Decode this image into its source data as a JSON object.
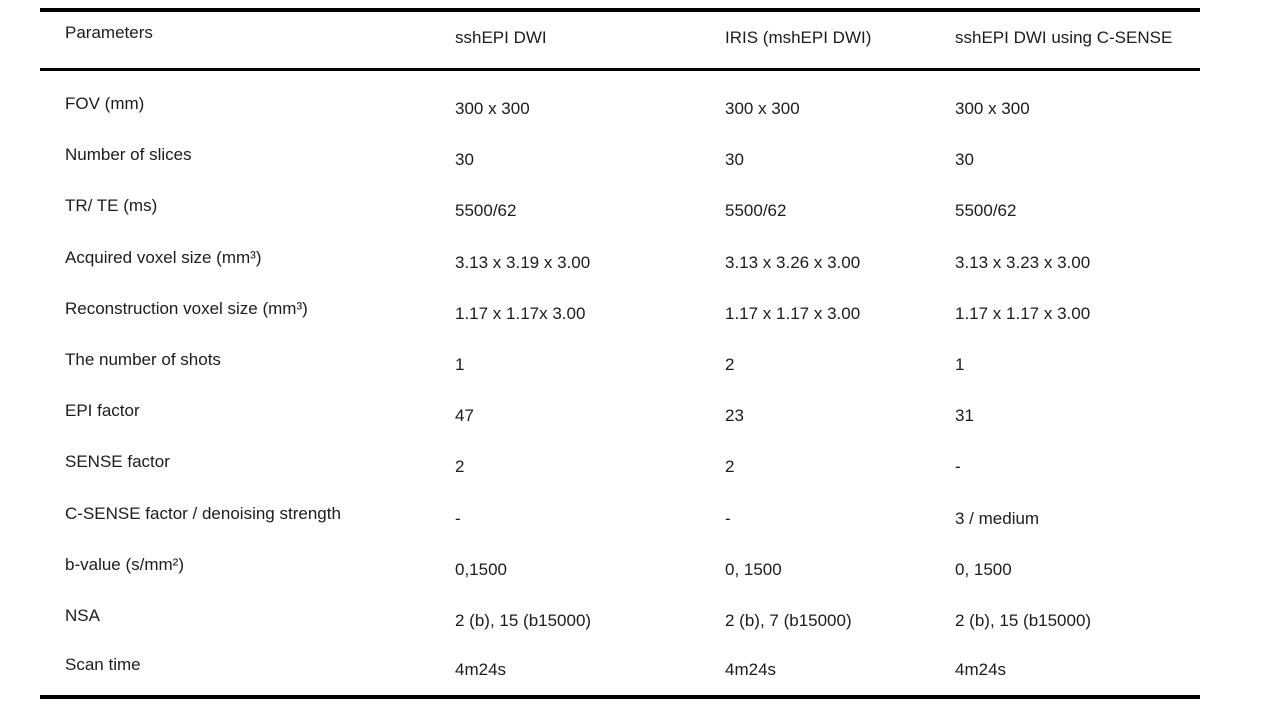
{
  "page": {
    "background": "#ffffff",
    "rule_color": "#000000",
    "text_color": "#1c1c1c"
  },
  "table": {
    "columns": [
      "Parameters",
      "sshEPI DWI",
      "IRIS (mshEPI DWI)",
      "sshEPI DWI using C-SENSE"
    ],
    "rows": [
      {
        "label": "FOV (mm)",
        "values": [
          "300 x 300",
          "300 x 300",
          "300 x 300"
        ]
      },
      {
        "label": "Number of slices",
        "values": [
          "30",
          "30",
          "30"
        ]
      },
      {
        "label": "TR/ TE (ms)",
        "values": [
          "5500/62",
          "5500/62",
          "5500/62"
        ]
      },
      {
        "label": "Acquired voxel size (mm³)",
        "values": [
          "3.13 x 3.19 x 3.00",
          "3.13 x 3.26 x 3.00",
          "3.13 x 3.23 x 3.00"
        ]
      },
      {
        "label": "Reconstruction voxel size (mm³)",
        "values": [
          "1.17 x 1.17x 3.00",
          "1.17 x 1.17 x 3.00",
          "1.17 x 1.17 x 3.00"
        ]
      },
      {
        "label": "The number of shots",
        "values": [
          "1",
          "2",
          "1"
        ]
      },
      {
        "label": "EPI factor",
        "values": [
          "47",
          "23",
          "31"
        ]
      },
      {
        "label": "SENSE factor",
        "values": [
          "2",
          "2",
          "-"
        ]
      },
      {
        "label": "C-SENSE factor / denoising strength",
        "values": [
          "-",
          "-",
          "3 / medium"
        ]
      },
      {
        "label": "b-value (s/mm²)",
        "values": [
          "0,1500",
          "0, 1500",
          "0, 1500"
        ]
      },
      {
        "label": "NSA",
        "values": [
          "2 (b), 15 (b15000)",
          "2 (b), 7 (b15000)",
          "2 (b), 15 (b15000)"
        ]
      },
      {
        "label": "Scan time",
        "values": [
          "4m24s",
          "4m24s",
          "4m24s"
        ]
      }
    ]
  },
  "chart_data": {
    "type": "table",
    "columns": [
      "Parameters",
      "sshEPI DWI",
      "IRIS (mshEPI DWI)",
      "sshEPI DWI using C-SENSE"
    ],
    "rows": [
      [
        "FOV (mm)",
        "300 x 300",
        "300 x 300",
        "300 x 300"
      ],
      [
        "Number of slices",
        "30",
        "30",
        "30"
      ],
      [
        "TR/ TE (ms)",
        "5500/62",
        "5500/62",
        "5500/62"
      ],
      [
        "Acquired voxel size (mm³)",
        "3.13 x 3.19 x 3.00",
        "3.13 x 3.26 x 3.00",
        "3.13 x 3.23 x 3.00"
      ],
      [
        "Reconstruction voxel size (mm³)",
        "1.17 x 1.17x 3.00",
        "1.17 x 1.17 x 3.00",
        "1.17 x 1.17 x 3.00"
      ],
      [
        "The number of shots",
        "1",
        "2",
        "1"
      ],
      [
        "EPI factor",
        "47",
        "23",
        "31"
      ],
      [
        "SENSE factor",
        "2",
        "2",
        "-"
      ],
      [
        "C-SENSE factor / denoising strength",
        "-",
        "-",
        "3 / medium"
      ],
      [
        "b-value (s/mm²)",
        "0,1500",
        "0, 1500",
        "0, 1500"
      ],
      [
        "NSA",
        "2 (b), 15 (b15000)",
        "2 (b), 7 (b15000)",
        "2 (b), 15 (b15000)"
      ],
      [
        "Scan time",
        "4m24s",
        "4m24s",
        "4m24s"
      ]
    ]
  }
}
